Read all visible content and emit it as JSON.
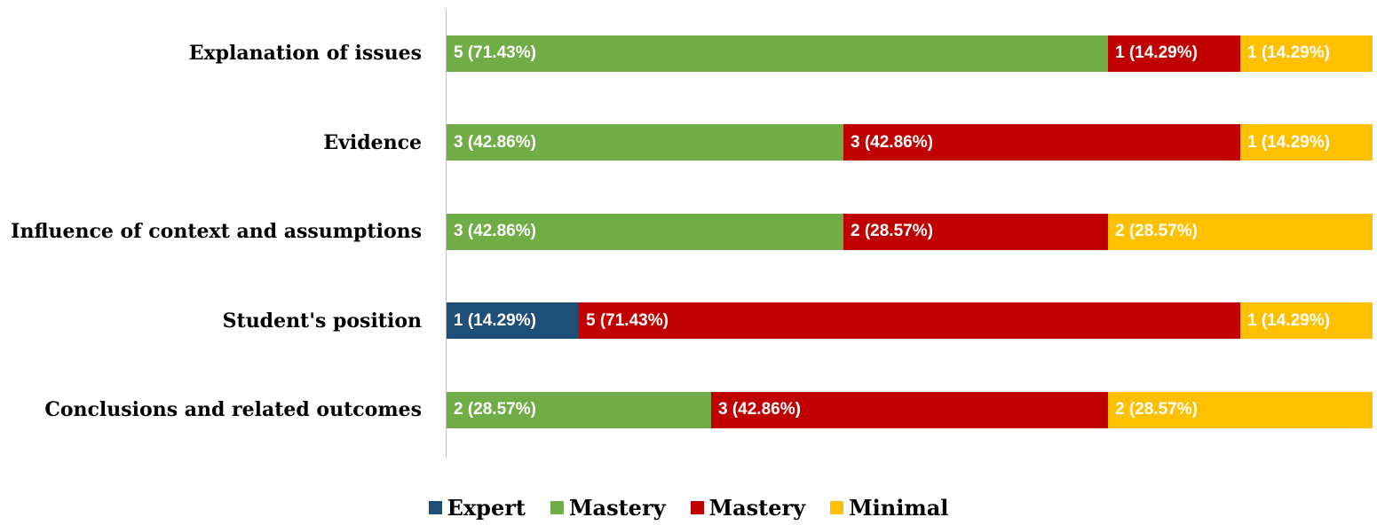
{
  "chart_data": {
    "type": "bar",
    "orientation": "horizontal",
    "stacked": true,
    "categories": [
      "Explanation of issues",
      "Evidence",
      "Influence of context and assumptions",
      "Student's position",
      "Conclusions and related outcomes"
    ],
    "series": [
      {
        "name": "Expert",
        "color": "#1f4e79",
        "values": [
          null,
          null,
          null,
          1,
          null
        ],
        "value_labels": [
          null,
          null,
          null,
          "1 (14.29%)",
          null
        ]
      },
      {
        "name": "Mastery",
        "color": "#70ad47",
        "values": [
          5,
          3,
          3,
          null,
          2
        ],
        "value_labels": [
          "5 (71.43%)",
          "3 (42.86%)",
          "3 (42.86%)",
          null,
          "2 (28.57%)"
        ]
      },
      {
        "name": "Mastery",
        "color": "#c00000",
        "values": [
          1,
          3,
          2,
          5,
          3
        ],
        "value_labels": [
          "1 (14.29%)",
          "3 (42.86%)",
          "2 (28.57%)",
          "5 (71.43%)",
          "3 (42.86%)"
        ]
      },
      {
        "name": "Minimal",
        "color": "#ffc000",
        "values": [
          1,
          1,
          2,
          1,
          2
        ],
        "value_labels": [
          "1 (14.29%)",
          "1 (14.29%)",
          "2 (28.57%)",
          "1 (14.29%)",
          "2 (28.57%)"
        ]
      }
    ],
    "legend": "bottom"
  }
}
